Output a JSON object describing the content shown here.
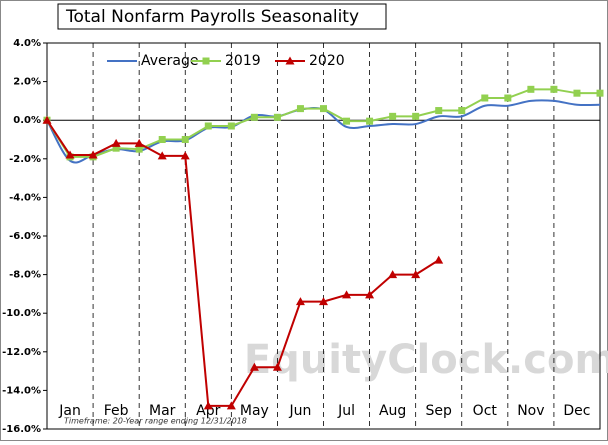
{
  "chart_data": {
    "type": "line",
    "title": "Total Nonfarm Payrolls Seasonality",
    "annotations": [
      "Timeframe: 20-Year range ending 12/31/2018",
      "EquityClock.com"
    ],
    "categories": [
      "Jan",
      "Feb",
      "Mar",
      "Apr",
      "May",
      "Jun",
      "Jul",
      "Aug",
      "Sep",
      "Oct",
      "Nov",
      "Dec"
    ],
    "x": [
      0,
      0.5,
      1,
      1.5,
      2,
      2.5,
      3,
      3.5,
      4,
      4.5,
      5,
      5.5,
      6,
      6.5,
      7,
      7.5,
      8,
      8.5,
      9,
      9.5,
      10,
      10.5,
      11,
      11.5,
      12
    ],
    "xlim": [
      0,
      12
    ],
    "ylim": [
      -16,
      4
    ],
    "yticks": [
      {
        "value": 4,
        "label": "4.0%"
      },
      {
        "value": 2,
        "label": "2.0%"
      },
      {
        "value": 0,
        "label": "0.0%"
      },
      {
        "value": -2,
        "label": "-2.0%"
      },
      {
        "value": -4,
        "label": "-4.0%"
      },
      {
        "value": -6,
        "label": "-6.0%"
      },
      {
        "value": -8,
        "label": "-8.0%"
      },
      {
        "value": -10,
        "label": "-10.0%"
      },
      {
        "value": -12,
        "label": "-12.0%"
      },
      {
        "value": -14,
        "label": "-14.0%"
      },
      {
        "value": -16,
        "label": "-16.0%"
      }
    ],
    "legend": "top",
    "series": [
      {
        "name": "Average",
        "color": "#4472c4",
        "marker": "none",
        "smooth": true,
        "values": [
          0,
          -2.1,
          -1.8,
          -1.5,
          -1.6,
          -1.1,
          -1.05,
          -0.4,
          -0.35,
          0.25,
          0.2,
          0.55,
          0.55,
          -0.35,
          -0.3,
          -0.2,
          -0.2,
          0.2,
          0.2,
          0.75,
          0.75,
          1.0,
          1.0,
          0.8,
          0.8
        ]
      },
      {
        "name": "2019",
        "color": "#92d050",
        "marker": "square",
        "smooth": false,
        "values": [
          0,
          -1.9,
          -1.9,
          -1.45,
          -1.5,
          -1.0,
          -1.0,
          -0.3,
          -0.3,
          0.15,
          0.15,
          0.6,
          0.6,
          -0.05,
          -0.05,
          0.2,
          0.2,
          0.5,
          0.5,
          1.15,
          1.15,
          1.6,
          1.6,
          1.4,
          1.4
        ]
      },
      {
        "name": "2020",
        "color": "#c00000",
        "marker": "triangle",
        "smooth": false,
        "values": [
          0,
          -1.8,
          -1.8,
          -1.2,
          -1.2,
          -1.85,
          -1.85,
          -14.8,
          -14.8,
          -12.8,
          -12.8,
          -9.4,
          -9.4,
          -9.05,
          -9.05,
          -8.0,
          -8.0,
          -7.25,
          null,
          null,
          null,
          null,
          null,
          null,
          null
        ]
      }
    ]
  }
}
